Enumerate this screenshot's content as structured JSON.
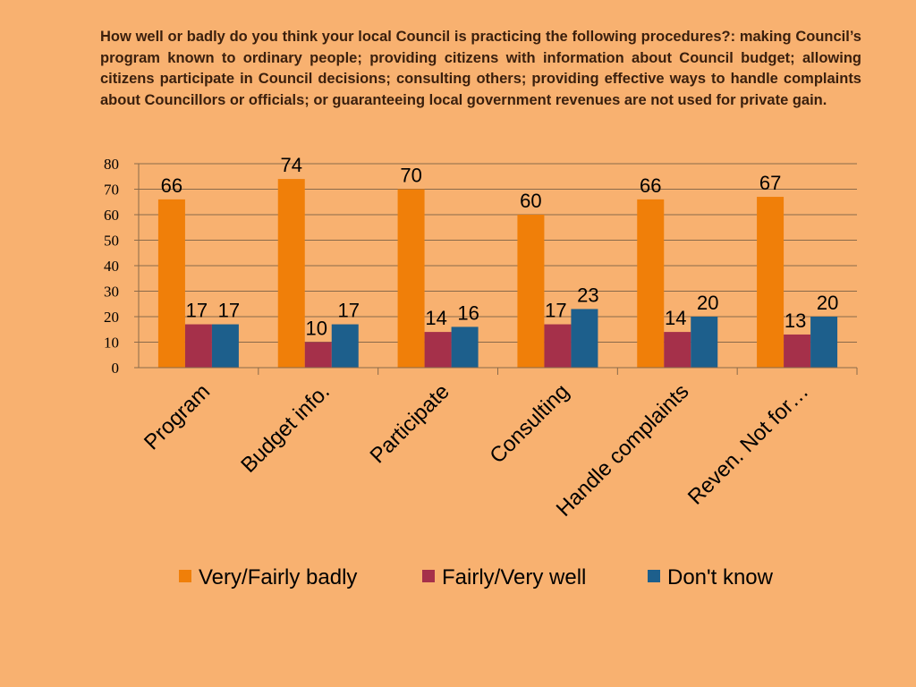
{
  "chart_data": {
    "type": "bar",
    "title": "How well or badly do you think your local Council is practicing the following procedures?: making Council’s program known to ordinary people; providing citizens with information about Council budget; allowing citizens participate in Council decisions; consulting others; providing effective ways to handle complaints about Councillors or officials; or guaranteeing local government revenues are not used for private gain.",
    "categories": [
      "Program",
      "Budget info.",
      "Participate",
      "Consulting",
      "Handle complaints",
      "Reven. Not for…"
    ],
    "series": [
      {
        "name": "Very/Fairly badly",
        "color": "#F07F09",
        "values": [
          66,
          74,
          70,
          60,
          66,
          67
        ]
      },
      {
        "name": "Fairly/Very well",
        "color": "#A5304A",
        "values": [
          17,
          10,
          14,
          17,
          14,
          13
        ]
      },
      {
        "name": "Don't know",
        "color": "#1D5F8C",
        "values": [
          17,
          17,
          16,
          23,
          20,
          20
        ]
      }
    ],
    "ylim": [
      0,
      80
    ],
    "yticks": [
      0,
      10,
      20,
      30,
      40,
      50,
      60,
      70,
      80
    ],
    "grid": true,
    "legend_position": "bottom"
  }
}
